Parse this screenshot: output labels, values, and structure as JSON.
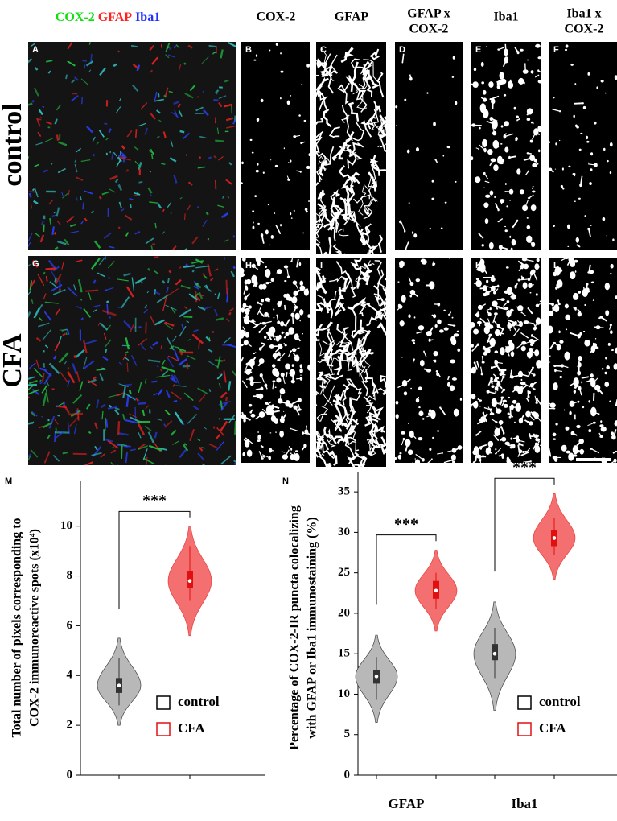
{
  "micrographs": {
    "composite_label": [
      {
        "text": "COX-2",
        "color": "#10e010"
      },
      {
        "text": "GFAP",
        "color": "#ff2020"
      },
      {
        "text": "Iba1",
        "color": "#2030ff"
      }
    ],
    "columns": [
      [
        "COX-2"
      ],
      [
        "GFAP"
      ],
      [
        "GFAP x",
        "COX-2"
      ],
      [
        "Iba1"
      ],
      [
        "Iba1 x",
        "COX-2"
      ]
    ],
    "rows": [
      "control",
      "CFA"
    ],
    "panel_letters": [
      [
        "A",
        "B",
        "C",
        "D",
        "E",
        "F"
      ],
      [
        "G",
        "H",
        "I",
        "J",
        "K",
        "L"
      ]
    ]
  },
  "chart_data": [
    {
      "type": "violin",
      "panel": "M",
      "ylabel_lines": [
        "Total number of pixels corresponding to",
        "COX-2 immunoreactive spots (x10⁴)"
      ],
      "categories": [
        null
      ],
      "series": [
        {
          "name": "control",
          "color": "#b8b8b8",
          "edge_color": "#000000",
          "stats": [
            {
              "min": 2.0,
              "whisker_low": 2.8,
              "q1": 3.3,
              "median": 3.6,
              "q3": 3.9,
              "whisker_high": 4.7,
              "max": 5.5
            }
          ]
        },
        {
          "name": "CFA",
          "color": "#f47070",
          "edge_color": "#e01010",
          "stats": [
            {
              "min": 5.6,
              "whisker_low": 7.0,
              "q1": 7.5,
              "median": 7.8,
              "q3": 8.2,
              "whisker_high": 9.2,
              "max": 10.0
            }
          ]
        }
      ],
      "significance": [
        "***"
      ],
      "ylim": [
        0,
        11.8
      ],
      "yticks": [
        0,
        2,
        4,
        6,
        8,
        10
      ],
      "legend_position": "lower right"
    },
    {
      "type": "violin",
      "panel": "N",
      "ylabel_lines": [
        "Percentage of COX-2-IR puncta colocalizing",
        "with GFAP or Iba1 immunostaining (%)"
      ],
      "categories": [
        "GFAP",
        "Iba1"
      ],
      "series": [
        {
          "name": "control",
          "color": "#b8b8b8",
          "edge_color": "#000000",
          "stats": [
            {
              "min": 6.5,
              "whisker_low": 9.3,
              "q1": 11.3,
              "median": 12.2,
              "q3": 13.0,
              "whisker_high": 14.6,
              "max": 17.3
            },
            {
              "min": 8.0,
              "whisker_low": 12.0,
              "q1": 14.2,
              "median": 15.0,
              "q3": 16.2,
              "whisker_high": 18.2,
              "max": 21.4
            }
          ]
        },
        {
          "name": "CFA",
          "color": "#f47070",
          "edge_color": "#e01010",
          "stats": [
            {
              "min": 17.8,
              "whisker_low": 20.5,
              "q1": 21.8,
              "median": 22.8,
              "q3": 24.0,
              "whisker_high": 25.0,
              "max": 27.8
            },
            {
              "min": 24.2,
              "whisker_low": 27.2,
              "q1": 28.3,
              "median": 29.3,
              "q3": 30.3,
              "whisker_high": 31.8,
              "max": 34.8
            }
          ]
        }
      ],
      "significance": [
        "***",
        "***"
      ],
      "ylim": [
        0,
        37.5
      ],
      "yticks": [
        0,
        5,
        10,
        15,
        20,
        25,
        30,
        35
      ],
      "legend_position": "lower right"
    }
  ]
}
